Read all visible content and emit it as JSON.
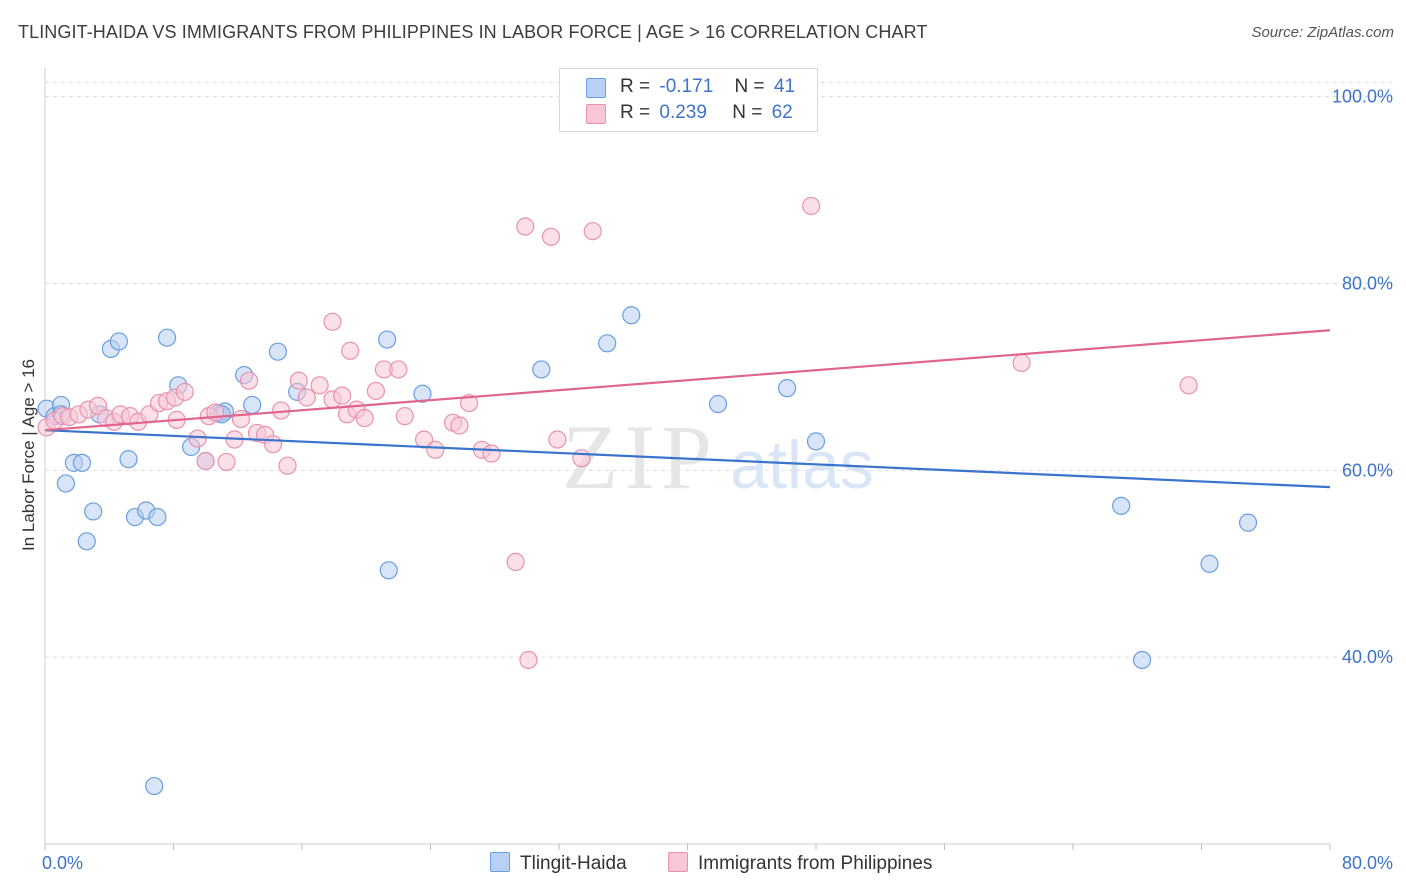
{
  "title": "TLINGIT-HAIDA VS IMMIGRANTS FROM PHILIPPINES IN LABOR FORCE | AGE > 16 CORRELATION CHART",
  "source": "Source: ZipAtlas.com",
  "watermark": {
    "zip": "ZIP",
    "atlas": "atlas"
  },
  "legend": {
    "rows": [
      {
        "r_label": "R =",
        "r_value": "-0.171",
        "n_label": "N =",
        "n_value": "41"
      },
      {
        "r_label": "R =",
        "r_value": "0.239",
        "n_label": "N =",
        "n_value": "62"
      }
    ]
  },
  "colors": {
    "blue_fill": "#b8d0f3",
    "blue_stroke": "#6a9ee0",
    "blue_line": "#3a74cc",
    "pink_fill": "#f8c6d6",
    "pink_stroke": "#e992ae",
    "pink_line": "#e0648e",
    "tick_label": "#3d73c8",
    "grid": "#dcdcdc"
  },
  "chart_data": {
    "type": "scatter",
    "title": "TLINGIT-HAIDA VS IMMIGRANTS FROM PHILIPPINES IN LABOR FORCE | AGE > 16 CORRELATION CHART",
    "xlabel": "",
    "ylabel": "In Labor Force | Age > 16",
    "xlim": [
      0,
      80
    ],
    "ylim": [
      20,
      102
    ],
    "x_tick_labels": [
      {
        "value": 0,
        "label": "0.0%"
      },
      {
        "value": 80,
        "label": "80.0%"
      }
    ],
    "y_tick_labels": [
      {
        "value": 40,
        "label": "40.0%"
      },
      {
        "value": 60,
        "label": "60.0%"
      },
      {
        "value": 80,
        "label": "80.0%"
      },
      {
        "value": 100,
        "label": "100.0%"
      }
    ],
    "grid": true,
    "legend_position": "top-center",
    "series": [
      {
        "name": "Tlingit-Haida",
        "color": "#b8d0f3",
        "trend": {
          "x": [
            0,
            80
          ],
          "y": [
            64.3,
            58.2
          ]
        },
        "points": [
          [
            0.1,
            66.6
          ],
          [
            0.6,
            65.8
          ],
          [
            1.0,
            67.0
          ],
          [
            1.3,
            58.6
          ],
          [
            1.8,
            60.8
          ],
          [
            2.3,
            60.8
          ],
          [
            2.6,
            52.4
          ],
          [
            3.0,
            55.6
          ],
          [
            3.4,
            66.0
          ],
          [
            4.1,
            73.0
          ],
          [
            4.6,
            73.8
          ],
          [
            5.2,
            61.2
          ],
          [
            5.6,
            55.0
          ],
          [
            6.3,
            55.7
          ],
          [
            6.8,
            26.2
          ],
          [
            7.0,
            55.0
          ],
          [
            7.6,
            74.2
          ],
          [
            8.3,
            69.1
          ],
          [
            9.1,
            62.5
          ],
          [
            10.0,
            61.0
          ],
          [
            10.8,
            66.1
          ],
          [
            11.2,
            66.3
          ],
          [
            12.4,
            70.2
          ],
          [
            12.9,
            67.0
          ],
          [
            14.5,
            72.7
          ],
          [
            15.7,
            68.4
          ],
          [
            21.3,
            74.0
          ],
          [
            21.4,
            49.3
          ],
          [
            23.5,
            68.2
          ],
          [
            30.9,
            70.8
          ],
          [
            35.0,
            73.6
          ],
          [
            36.5,
            76.6
          ],
          [
            41.9,
            67.1
          ],
          [
            46.2,
            68.8
          ],
          [
            48.0,
            63.1
          ],
          [
            67.0,
            56.2
          ],
          [
            68.3,
            39.7
          ],
          [
            72.5,
            50.0
          ],
          [
            74.9,
            54.4
          ],
          [
            1.0,
            66.0
          ],
          [
            11.0,
            66.0
          ]
        ]
      },
      {
        "name": "Immigrants from Philippines",
        "color": "#f8c6d6",
        "trend": {
          "x": [
            0,
            80
          ],
          "y": [
            64.3,
            75.0
          ]
        },
        "points": [
          [
            0.1,
            64.6
          ],
          [
            0.6,
            65.3
          ],
          [
            1.1,
            65.8
          ],
          [
            1.5,
            65.7
          ],
          [
            2.1,
            66.0
          ],
          [
            2.7,
            66.5
          ],
          [
            3.3,
            66.9
          ],
          [
            3.8,
            65.6
          ],
          [
            4.3,
            65.2
          ],
          [
            4.7,
            66.0
          ],
          [
            5.3,
            65.8
          ],
          [
            5.8,
            65.2
          ],
          [
            6.5,
            66.0
          ],
          [
            7.1,
            67.2
          ],
          [
            7.6,
            67.4
          ],
          [
            8.1,
            67.8
          ],
          [
            8.2,
            65.4
          ],
          [
            8.7,
            68.4
          ],
          [
            9.5,
            63.4
          ],
          [
            10.0,
            61.0
          ],
          [
            10.2,
            65.8
          ],
          [
            10.6,
            66.2
          ],
          [
            11.3,
            60.9
          ],
          [
            11.8,
            63.3
          ],
          [
            12.2,
            65.5
          ],
          [
            12.7,
            69.6
          ],
          [
            13.2,
            64.0
          ],
          [
            13.7,
            63.8
          ],
          [
            14.2,
            62.8
          ],
          [
            14.7,
            66.4
          ],
          [
            15.1,
            60.5
          ],
          [
            15.8,
            69.6
          ],
          [
            16.3,
            67.8
          ],
          [
            17.1,
            69.1
          ],
          [
            17.9,
            67.6
          ],
          [
            18.5,
            68.0
          ],
          [
            18.8,
            66.0
          ],
          [
            19.4,
            66.5
          ],
          [
            19.9,
            65.6
          ],
          [
            20.6,
            68.5
          ],
          [
            21.1,
            70.8
          ],
          [
            22.0,
            70.8
          ],
          [
            22.4,
            65.8
          ],
          [
            23.6,
            63.3
          ],
          [
            24.3,
            62.2
          ],
          [
            25.4,
            65.1
          ],
          [
            25.8,
            64.8
          ],
          [
            26.4,
            67.2
          ],
          [
            27.2,
            62.2
          ],
          [
            27.8,
            61.8
          ],
          [
            29.3,
            50.2
          ],
          [
            29.9,
            86.1
          ],
          [
            30.1,
            39.7
          ],
          [
            31.5,
            85.0
          ],
          [
            31.9,
            63.3
          ],
          [
            33.4,
            61.3
          ],
          [
            34.1,
            85.6
          ],
          [
            17.9,
            75.9
          ],
          [
            19.0,
            72.8
          ],
          [
            47.7,
            88.3
          ],
          [
            60.8,
            71.5
          ],
          [
            71.2,
            69.1
          ]
        ]
      }
    ]
  }
}
